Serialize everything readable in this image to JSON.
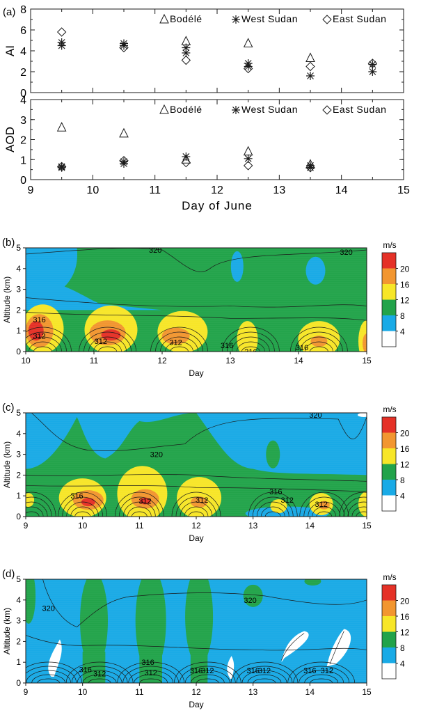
{
  "chart_data": [
    {
      "panel": "(a)",
      "type": "scatter",
      "ylabel": "AI",
      "ylim": [
        0,
        8
      ],
      "yticks": [
        "0",
        "2",
        "4",
        "6",
        "8"
      ],
      "legend": [
        {
          "label": "Bodélé",
          "symbol": "triangle"
        },
        {
          "label": "West Sudan",
          "symbol": "asterisk"
        },
        {
          "label": "East Sudan",
          "symbol": "diamond"
        }
      ],
      "series": [
        {
          "name": "Bodélé",
          "symbol": "triangle",
          "points": [
            [
              11.5,
              4.9
            ],
            [
              12.5,
              4.7
            ],
            [
              13.5,
              3.3
            ]
          ]
        },
        {
          "name": "West Sudan",
          "symbol": "asterisk",
          "points": [
            [
              9.5,
              4.8
            ],
            [
              9.5,
              4.5
            ],
            [
              10.5,
              4.7
            ],
            [
              10.5,
              4.5
            ],
            [
              11.5,
              4.3
            ],
            [
              11.5,
              3.8
            ],
            [
              12.5,
              2.8
            ],
            [
              12.5,
              2.5
            ],
            [
              13.5,
              1.6
            ],
            [
              14.5,
              2.7
            ],
            [
              14.5,
              2.0
            ]
          ]
        },
        {
          "name": "East Sudan",
          "symbol": "diamond",
          "points": [
            [
              9.5,
              5.8
            ],
            [
              10.5,
              4.3
            ],
            [
              11.5,
              3.1
            ],
            [
              12.5,
              2.3
            ],
            [
              13.5,
              2.5
            ],
            [
              14.5,
              2.8
            ]
          ]
        }
      ]
    },
    {
      "panel": "",
      "type": "scatter",
      "ylabel": "AOD",
      "xlabel": "Day of June",
      "ylim": [
        0,
        4
      ],
      "xlim": [
        9,
        15
      ],
      "yticks": [
        "0",
        "1",
        "2",
        "3",
        "4"
      ],
      "xticks": [
        "9",
        "10",
        "11",
        "12",
        "13",
        "14",
        "15"
      ],
      "legend": [
        {
          "label": "Bodélé",
          "symbol": "triangle"
        },
        {
          "label": "West Sudan",
          "symbol": "asterisk"
        },
        {
          "label": "East Sudan",
          "symbol": "diamond"
        }
      ],
      "series": [
        {
          "name": "Bodélé",
          "symbol": "triangle",
          "points": [
            [
              9.5,
              2.6
            ],
            [
              10.5,
              2.3
            ],
            [
              11.5,
              1.0
            ],
            [
              12.5,
              1.4
            ],
            [
              13.5,
              0.75
            ]
          ]
        },
        {
          "name": "West Sudan",
          "symbol": "asterisk",
          "points": [
            [
              9.5,
              0.65
            ],
            [
              9.5,
              0.6
            ],
            [
              10.5,
              0.9
            ],
            [
              10.5,
              0.8
            ],
            [
              11.5,
              1.15
            ],
            [
              12.5,
              1.05
            ],
            [
              13.5,
              0.7
            ],
            [
              13.5,
              0.6
            ]
          ]
        },
        {
          "name": "East Sudan",
          "symbol": "diamond",
          "points": [
            [
              9.5,
              0.65
            ],
            [
              10.5,
              0.95
            ],
            [
              11.5,
              0.85
            ],
            [
              12.5,
              0.7
            ],
            [
              13.5,
              0.6
            ]
          ]
        }
      ]
    },
    {
      "panel": "(b)",
      "type": "heatmap",
      "xlabel": "Day",
      "ylabel": "Altitude (km)",
      "xlim": [
        10,
        15
      ],
      "ylim": [
        0,
        5
      ],
      "xticks": [
        "10",
        "11",
        "12",
        "13",
        "14",
        "15"
      ],
      "yticks": [
        "0",
        "1",
        "2",
        "3",
        "4",
        "5"
      ],
      "colorbar": {
        "unit": "m/s",
        "labels": [
          "4",
          "8",
          "12",
          "16",
          "20"
        ]
      },
      "contour_labels": [
        {
          "text": "320",
          "x": 11.9,
          "y": 4.9
        },
        {
          "text": "320",
          "x": 14.7,
          "y": 4.8
        },
        {
          "text": "316",
          "x": 10.2,
          "y": 1.55
        },
        {
          "text": "312",
          "x": 10.2,
          "y": 0.75
        },
        {
          "text": "312",
          "x": 11.1,
          "y": 0.5
        },
        {
          "text": "312",
          "x": 12.2,
          "y": 0.45
        },
        {
          "text": "316",
          "x": 12.95,
          "y": 0.3
        },
        {
          "text": "316",
          "x": 13.3,
          "y": 0.0
        },
        {
          "text": "316",
          "x": 14.05,
          "y": 0.2
        }
      ]
    },
    {
      "panel": "(c)",
      "type": "heatmap",
      "xlabel": "Day",
      "ylabel": "Altitude (km)",
      "xlim": [
        9,
        15
      ],
      "ylim": [
        0,
        5
      ],
      "xticks": [
        "9",
        "10",
        "11",
        "12",
        "13",
        "14",
        "15"
      ],
      "yticks": [
        "0",
        "1",
        "2",
        "3",
        "4",
        "5"
      ],
      "colorbar": {
        "unit": "m/s",
        "labels": [
          "4",
          "8",
          "12",
          "16",
          "20"
        ]
      },
      "contour_labels": [
        {
          "text": "320",
          "x": 14.1,
          "y": 4.9
        },
        {
          "text": "320",
          "x": 11.3,
          "y": 3.0
        },
        {
          "text": "316",
          "x": 9.9,
          "y": 1.0
        },
        {
          "text": "312",
          "x": 11.1,
          "y": 0.75
        },
        {
          "text": "312",
          "x": 12.1,
          "y": 0.8
        },
        {
          "text": "316",
          "x": 13.4,
          "y": 1.2
        },
        {
          "text": "312",
          "x": 13.6,
          "y": 0.8
        },
        {
          "text": "312",
          "x": 14.2,
          "y": 0.6
        }
      ]
    },
    {
      "panel": "(d)",
      "type": "heatmap",
      "xlabel": "Day",
      "ylabel": "Altitude (km)",
      "xlim": [
        9,
        15
      ],
      "ylim": [
        0,
        5
      ],
      "xticks": [
        "9",
        "10",
        "11",
        "12",
        "13",
        "14",
        "15"
      ],
      "yticks": [
        "0",
        "1",
        "2",
        "3",
        "4",
        "5"
      ],
      "colorbar": {
        "unit": "m/s",
        "labels": [
          "4",
          "8",
          "12",
          "16",
          "20"
        ]
      },
      "contour_labels": [
        {
          "text": "320",
          "x": 9.4,
          "y": 3.6
        },
        {
          "text": "320",
          "x": 12.95,
          "y": 4.0
        },
        {
          "text": "316",
          "x": 10.05,
          "y": 0.65
        },
        {
          "text": "312",
          "x": 10.3,
          "y": 0.45
        },
        {
          "text": "316",
          "x": 11.15,
          "y": 1.0
        },
        {
          "text": "312",
          "x": 11.2,
          "y": 0.5
        },
        {
          "text": "316",
          "x": 12.0,
          "y": 0.6
        },
        {
          "text": "312",
          "x": 12.2,
          "y": 0.6
        },
        {
          "text": "316",
          "x": 13.0,
          "y": 0.6
        },
        {
          "text": "312",
          "x": 13.2,
          "y": 0.6
        },
        {
          "text": "316",
          "x": 14.0,
          "y": 0.6
        },
        {
          "text": "312",
          "x": 14.3,
          "y": 0.6
        }
      ]
    }
  ],
  "colors": {
    "white": "#ffffff",
    "blue": "#19aae6",
    "green": "#22a34a",
    "yellow": "#f7e628",
    "orange": "#f29630",
    "red": "#e53127",
    "line": "#1a1a1a"
  }
}
